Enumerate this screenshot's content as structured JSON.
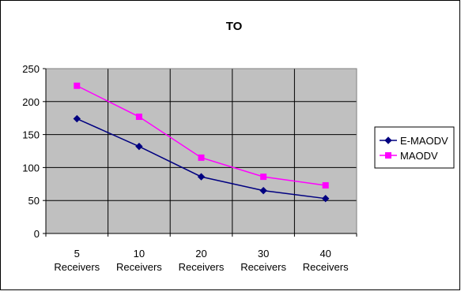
{
  "chart_data": {
    "type": "line",
    "title": "TO",
    "xlabel": "",
    "ylabel": "",
    "categories": [
      "5 Receivers",
      "10 Receivers",
      "20 Receivers",
      "30 Receivers",
      "40 Receivers"
    ],
    "category_lines": [
      [
        "5",
        "Receivers"
      ],
      [
        "10",
        "Receivers"
      ],
      [
        "20",
        "Receivers"
      ],
      [
        "30",
        "Receivers"
      ],
      [
        "40",
        "Receivers"
      ]
    ],
    "ylim": [
      0,
      250
    ],
    "yticks": [
      0,
      50,
      100,
      150,
      200,
      250
    ],
    "grid": true,
    "legend_position": "right",
    "plot_background": "#c0c0c0",
    "series": [
      {
        "name": "E-MAODV",
        "values": [
          174,
          132,
          86,
          65,
          53
        ],
        "color": "#000080",
        "marker": "diamond"
      },
      {
        "name": "MAODV",
        "values": [
          224,
          177,
          115,
          86,
          73
        ],
        "color": "#ff00ff",
        "marker": "square"
      }
    ]
  }
}
